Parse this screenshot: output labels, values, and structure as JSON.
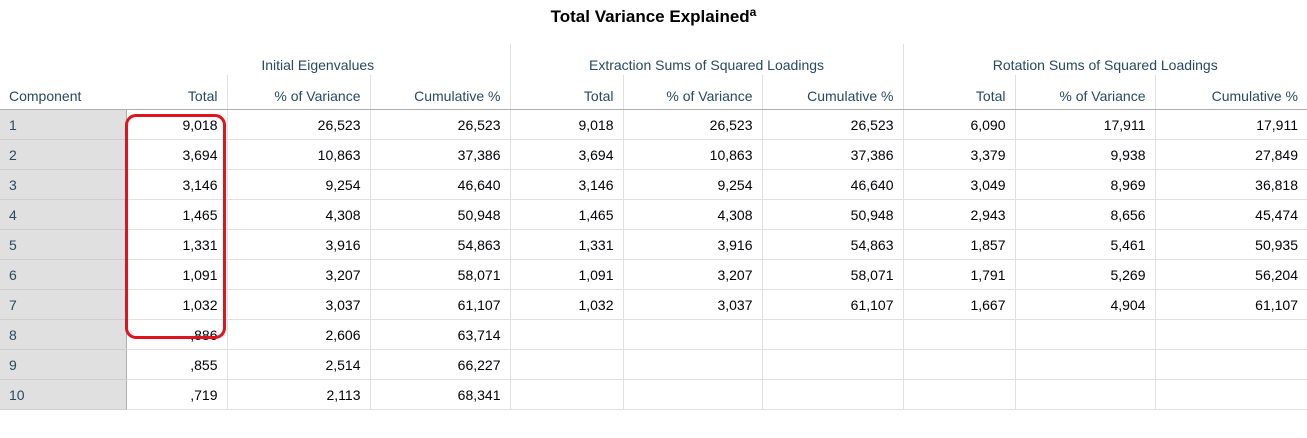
{
  "title": "Total Variance Explained",
  "title_superscript": "a",
  "header": {
    "groups": [
      "Initial Eigenvalues",
      "Extraction Sums of Squared Loadings",
      "Rotation Sums of Squared Loadings"
    ],
    "component_label": "Component",
    "sub": [
      "Total",
      "% of Variance",
      "Cumulative %",
      "Total",
      "% of Variance",
      "Cumulative %",
      "Total",
      "% of Variance",
      "Cumulative %"
    ]
  },
  "rows": [
    {
      "component": "1",
      "cells": [
        "9,018",
        "26,523",
        "26,523",
        "9,018",
        "26,523",
        "26,523",
        "6,090",
        "17,911",
        "17,911"
      ]
    },
    {
      "component": "2",
      "cells": [
        "3,694",
        "10,863",
        "37,386",
        "3,694",
        "10,863",
        "37,386",
        "3,379",
        "9,938",
        "27,849"
      ]
    },
    {
      "component": "3",
      "cells": [
        "3,146",
        "9,254",
        "46,640",
        "3,146",
        "9,254",
        "46,640",
        "3,049",
        "8,969",
        "36,818"
      ]
    },
    {
      "component": "4",
      "cells": [
        "1,465",
        "4,308",
        "50,948",
        "1,465",
        "4,308",
        "50,948",
        "2,943",
        "8,656",
        "45,474"
      ]
    },
    {
      "component": "5",
      "cells": [
        "1,331",
        "3,916",
        "54,863",
        "1,331",
        "3,916",
        "54,863",
        "1,857",
        "5,461",
        "50,935"
      ]
    },
    {
      "component": "6",
      "cells": [
        "1,091",
        "3,207",
        "58,071",
        "1,091",
        "3,207",
        "58,071",
        "1,791",
        "5,269",
        "56,204"
      ]
    },
    {
      "component": "7",
      "cells": [
        "1,032",
        "3,037",
        "61,107",
        "1,032",
        "3,037",
        "61,107",
        "1,667",
        "4,904",
        "61,107"
      ]
    },
    {
      "component": "8",
      "cells": [
        ",886",
        "2,606",
        "63,714",
        "",
        "",
        "",
        "",
        "",
        ""
      ]
    },
    {
      "component": "9",
      "cells": [
        ",855",
        "2,514",
        "66,227",
        "",
        "",
        "",
        "",
        "",
        ""
      ]
    },
    {
      "component": "10",
      "cells": [
        ",719",
        "2,113",
        "68,341",
        "",
        "",
        "",
        "",
        "",
        ""
      ]
    }
  ],
  "colors": {
    "header_text": "#264a60",
    "row_label_bg": "#e0e0e0",
    "grid_line": "#e0e0e0",
    "highlight": "#e0141e"
  }
}
